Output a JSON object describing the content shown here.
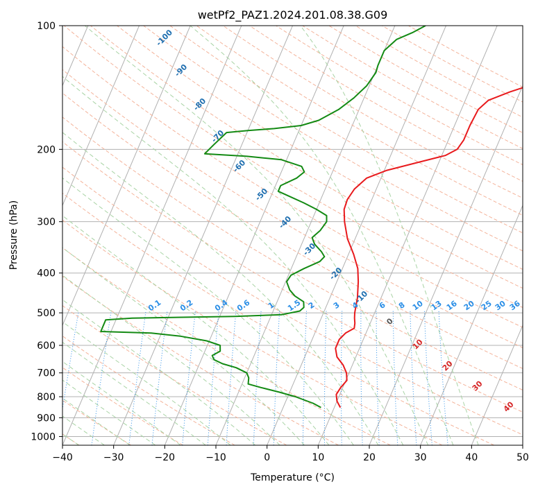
{
  "chart_data": {
    "type": "skew-t log-p sounding",
    "title": "wetPf2_PAZ1.2024.201.08.38.G09",
    "xlabel": "Temperature (°C)",
    "ylabel": "Pressure (hPa)",
    "xlim": [
      -40,
      50
    ],
    "ylim": [
      1050,
      100
    ],
    "y_scale": "log",
    "x_ticks": [
      -40,
      -30,
      -20,
      -10,
      0,
      10,
      20,
      30,
      40,
      50
    ],
    "x_tick_labels": [
      "−40",
      "−30",
      "−20",
      "−10",
      "0",
      "10",
      "20",
      "30",
      "40",
      "50"
    ],
    "y_ticks": [
      100,
      200,
      300,
      400,
      500,
      600,
      700,
      800,
      900,
      1000
    ],
    "y_tick_labels": [
      "100",
      "200",
      "300",
      "400",
      "500",
      "600",
      "700",
      "800",
      "900",
      "1000"
    ],
    "grid": true,
    "colors": {
      "temperature": "#e8191c",
      "dewpoint": "#138a13",
      "isotherm": "#b0b0b0",
      "dry_adiabat": "#f4b39a",
      "moist_adiabat": "#a8d3a4",
      "mixing_ratio": "#2a8ee6",
      "label_blue": "#1f6fb0",
      "label_red": "#d62728"
    },
    "series": [
      {
        "name": "",
        "role": "temperature",
        "color": "#e8191c",
        "points": [
          {
            "p": 850,
            "t": 11.2
          },
          {
            "p": 820,
            "t": 10.0
          },
          {
            "p": 790,
            "t": 9.3
          },
          {
            "p": 760,
            "t": 9.6
          },
          {
            "p": 730,
            "t": 10.2
          },
          {
            "p": 700,
            "t": 9.5
          },
          {
            "p": 670,
            "t": 8.2
          },
          {
            "p": 640,
            "t": 6.3
          },
          {
            "p": 610,
            "t": 5.3
          },
          {
            "p": 580,
            "t": 5.3
          },
          {
            "p": 560,
            "t": 6.0
          },
          {
            "p": 545,
            "t": 7.3
          },
          {
            "p": 530,
            "t": 7.0
          },
          {
            "p": 515,
            "t": 6.5
          },
          {
            "p": 500,
            "t": 6.1
          },
          {
            "p": 460,
            "t": 5.4
          },
          {
            "p": 420,
            "t": 4.2
          },
          {
            "p": 390,
            "t": 3.0
          },
          {
            "p": 360,
            "t": 1.0
          },
          {
            "p": 330,
            "t": -1.5
          },
          {
            "p": 300,
            "t": -3.5
          },
          {
            "p": 280,
            "t": -4.6
          },
          {
            "p": 265,
            "t": -4.8
          },
          {
            "p": 250,
            "t": -4.3
          },
          {
            "p": 235,
            "t": -2.8
          },
          {
            "p": 225,
            "t": 0.5
          },
          {
            "p": 215,
            "t": 6.0
          },
          {
            "p": 207,
            "t": 10.7
          },
          {
            "p": 200,
            "t": 12.5
          },
          {
            "p": 190,
            "t": 13.0
          },
          {
            "p": 175,
            "t": 13.0
          },
          {
            "p": 160,
            "t": 13.3
          },
          {
            "p": 152,
            "t": 14.5
          },
          {
            "p": 145,
            "t": 18.0
          },
          {
            "p": 138,
            "t": 22.5
          },
          {
            "p": 130,
            "t": 25.5
          },
          {
            "p": 122,
            "t": 27.0
          },
          {
            "p": 115,
            "t": 28.0
          },
          {
            "p": 107,
            "t": 29.0
          },
          {
            "p": 100,
            "t": 30.0
          }
        ]
      },
      {
        "name": "",
        "role": "dewpoint",
        "color": "#138a13",
        "points": [
          {
            "p": 850,
            "t": 7.4
          },
          {
            "p": 830,
            "t": 5.5
          },
          {
            "p": 800,
            "t": 1.5
          },
          {
            "p": 780,
            "t": -2.0
          },
          {
            "p": 760,
            "t": -6.0
          },
          {
            "p": 745,
            "t": -8.8
          },
          {
            "p": 720,
            "t": -9.2
          },
          {
            "p": 700,
            "t": -10.0
          },
          {
            "p": 680,
            "t": -12.5
          },
          {
            "p": 665,
            "t": -15.5
          },
          {
            "p": 650,
            "t": -17.5
          },
          {
            "p": 635,
            "t": -18.2
          },
          {
            "p": 620,
            "t": -17.0
          },
          {
            "p": 600,
            "t": -17.5
          },
          {
            "p": 585,
            "t": -20.5
          },
          {
            "p": 570,
            "t": -26.0
          },
          {
            "p": 560,
            "t": -32.0
          },
          {
            "p": 555,
            "t": -42.0
          },
          {
            "p": 520,
            "t": -42.0
          },
          {
            "p": 515,
            "t": -37.0
          },
          {
            "p": 510,
            "t": -17.0
          },
          {
            "p": 505,
            "t": -8.0
          },
          {
            "p": 495,
            "t": -4.8
          },
          {
            "p": 485,
            "t": -4.3
          },
          {
            "p": 470,
            "t": -4.8
          },
          {
            "p": 455,
            "t": -7.0
          },
          {
            "p": 440,
            "t": -8.5
          },
          {
            "p": 420,
            "t": -9.8
          },
          {
            "p": 405,
            "t": -9.5
          },
          {
            "p": 390,
            "t": -7.5
          },
          {
            "p": 375,
            "t": -5.0
          },
          {
            "p": 365,
            "t": -4.5
          },
          {
            "p": 355,
            "t": -5.5
          },
          {
            "p": 340,
            "t": -7.5
          },
          {
            "p": 328,
            "t": -8.5
          },
          {
            "p": 315,
            "t": -7.5
          },
          {
            "p": 300,
            "t": -7.0
          },
          {
            "p": 290,
            "t": -7.5
          },
          {
            "p": 280,
            "t": -10.0
          },
          {
            "p": 270,
            "t": -13.0
          },
          {
            "p": 260,
            "t": -16.5
          },
          {
            "p": 253,
            "t": -19.0
          },
          {
            "p": 245,
            "t": -19.0
          },
          {
            "p": 235,
            "t": -16.5
          },
          {
            "p": 227,
            "t": -15.5
          },
          {
            "p": 220,
            "t": -16.5
          },
          {
            "p": 212,
            "t": -21.0
          },
          {
            "p": 208,
            "t": -28.0
          },
          {
            "p": 205,
            "t": -36.5
          },
          {
            "p": 195,
            "t": -35.5
          },
          {
            "p": 182,
            "t": -34.0
          },
          {
            "p": 180,
            "t": -30.0
          },
          {
            "p": 178,
            "t": -25.0
          },
          {
            "p": 175,
            "t": -20.0
          },
          {
            "p": 170,
            "t": -17.0
          },
          {
            "p": 160,
            "t": -14.0
          },
          {
            "p": 150,
            "t": -12.0
          },
          {
            "p": 140,
            "t": -10.5
          },
          {
            "p": 130,
            "t": -9.8
          },
          {
            "p": 125,
            "t": -10.0
          },
          {
            "p": 115,
            "t": -10.0
          },
          {
            "p": 108,
            "t": -8.5
          },
          {
            "p": 104,
            "t": -6.0
          },
          {
            "p": 100,
            "t": -4.0
          }
        ]
      }
    ],
    "moist_adiabat_labels": [
      "-100",
      "-90",
      "-80",
      "-70",
      "-60",
      "-50",
      "-40",
      "-30",
      "-20",
      "-10",
      "0",
      "10",
      "20",
      "30",
      "40"
    ],
    "mixing_ratio_labels": [
      "0.1",
      "0.2",
      "0.4",
      "0.6",
      "1",
      "1.5",
      "2",
      "3",
      "4",
      "6",
      "8",
      "10",
      "13",
      "16",
      "20",
      "25",
      "30",
      "36"
    ]
  }
}
